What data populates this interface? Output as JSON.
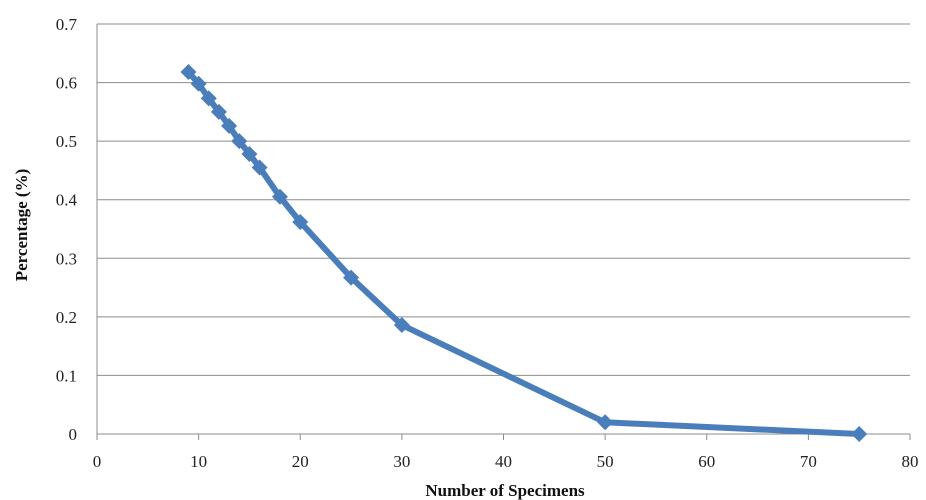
{
  "chart_data": {
    "type": "line",
    "title": "",
    "xlabel": "Number of Specimens",
    "ylabel": "Percentage (%)",
    "xlim": [
      0,
      80
    ],
    "ylim": [
      0,
      0.7
    ],
    "x_ticks": [
      0,
      10,
      20,
      30,
      40,
      50,
      60,
      70,
      80
    ],
    "y_ticks": [
      "0",
      "0.1",
      "0.2",
      "0.3",
      "0.4",
      "0.5",
      "0.6",
      "0.7"
    ],
    "grid": "horizontal",
    "legend": "none",
    "series": [
      {
        "color": "#4a7ebb",
        "marker": "diamond",
        "x": [
          9,
          10,
          11,
          12,
          13,
          14,
          15,
          16,
          18,
          20,
          25,
          30,
          50,
          75
        ],
        "y": [
          0.618,
          0.598,
          0.573,
          0.55,
          0.526,
          0.5,
          0.478,
          0.455,
          0.405,
          0.362,
          0.267,
          0.186,
          0.02,
          0.0
        ]
      }
    ]
  }
}
